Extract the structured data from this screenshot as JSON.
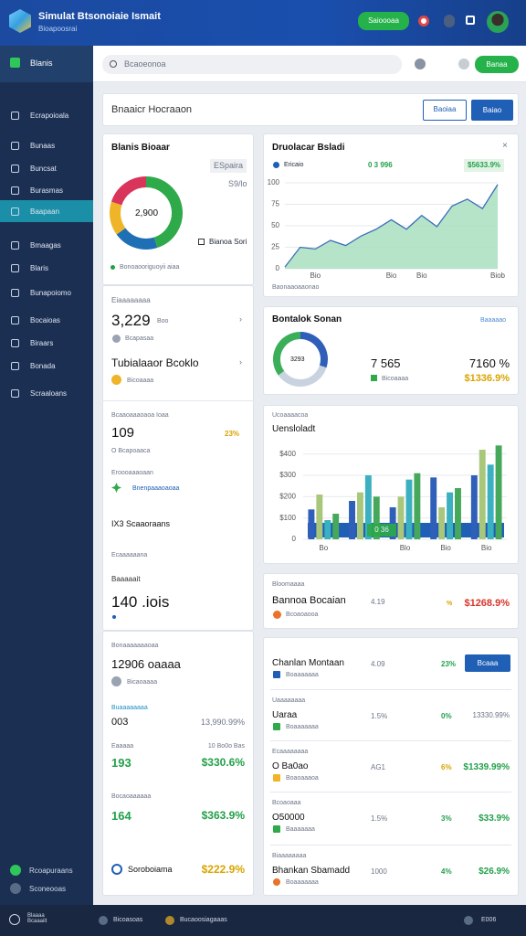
{
  "header": {
    "title": "Simulat Btsonoiaie Ismait",
    "subtitle": "Bioapoosrai",
    "button": "Saioooaa"
  },
  "sidebar": {
    "top": "Blanis",
    "items": [
      "Ecrapoioala",
      "Bunaas",
      "Buncsat",
      "Burasmas",
      "Baapaan",
      "Bmaagas",
      "Blaris",
      "Bunapoiomo",
      "Bocaioas",
      "Biraars",
      "Bonada",
      "Scraaloans"
    ],
    "bottom": [
      "Rcoapuraans",
      "Sconeooas"
    ]
  },
  "toolbar": {
    "search": "Bcaoeonoa",
    "button": "Banaa"
  },
  "page": {
    "title": "Bnaaicr Hocraaon",
    "buttons": [
      "Baoiaa",
      "Baiao"
    ]
  },
  "status_card": {
    "title": "Blanis Bioaar",
    "badge": "ESpaira",
    "note": "S9/lo",
    "center": "2,900",
    "legend_label": "Bianoa Sori",
    "footer": "Bonoaooriguoyii aiaa",
    "donut": {
      "type": "donut",
      "values": [
        45,
        20,
        15,
        20
      ],
      "colors": [
        "#2eaa4a",
        "#1f6fb5",
        "#f0b429",
        "#d9345a"
      ]
    }
  },
  "stats": [
    {
      "label": "Eiaaaaaaaa",
      "value": "3,229",
      "unit": "Boo",
      "sub": "Bcapasaa"
    },
    {
      "value": "Tubialaaor Bcoklo",
      "sub": "Bicoaaaa"
    },
    {
      "label": "Bcaaoaaaoaoa Ioaa",
      "value": "109",
      "pct": "23%",
      "sub": "O Bcapoaaca"
    },
    {
      "label": "Eroooaaaoaan",
      "sub": "Bnenpaaaoaoaa"
    },
    {
      "value": "IX3 Scaaoraans"
    },
    {
      "label": "Ecaaaaaana"
    },
    {
      "label": "Baaaaait",
      "value": "140 .iois"
    }
  ],
  "summary_card": {
    "title": "Bonaaaaaaaoaa",
    "value": "12906 oaaaa",
    "sub": "Bicaoaaaa",
    "rows": [
      {
        "label": "Buaaaaaaaa",
        "value": "003",
        "amount": "13,990.99%"
      },
      {
        "label": "Eaaaaa",
        "value": "193",
        "note": "10 Bo0o Bas",
        "amount": "$330.6%"
      },
      {
        "label": "Bocaoaaaaaa",
        "value": "164",
        "amount": "$363.9%"
      },
      {
        "value": "Soroboiama",
        "amount": "$222.9%"
      }
    ]
  },
  "line_card": {
    "title": "Druolacar Bsladi",
    "legend": "Ericaio",
    "value": "0 3 996",
    "badge": "$5633.9%",
    "footer": "Baonaaoaaonao",
    "chart_data": {
      "type": "area",
      "categories": [
        null,
        null,
        "Bio",
        null,
        null,
        null,
        null,
        "Bio",
        null,
        "Bio",
        null,
        null,
        null,
        null,
        "Biob"
      ],
      "values": [
        2,
        25,
        23,
        33,
        27,
        38,
        46,
        57,
        46,
        62,
        49,
        73,
        81,
        70,
        98
      ],
      "color": "#3c6fb8",
      "fill": "#a8dfc0",
      "ylim": [
        0,
        100
      ],
      "yticks": [
        0,
        25,
        50,
        75,
        100
      ],
      "grid": true
    }
  },
  "donut_card": {
    "title": "Bontalok Sonan",
    "link": "Baaaaao",
    "center": "3293",
    "value1": "7 565",
    "sub1": "Bicoaaaa",
    "value2": "7160 %",
    "amount": "$1336.9%",
    "donut": {
      "type": "donut",
      "values": [
        30,
        35,
        35
      ],
      "colors": [
        "#2f5fb8",
        "#c9d3e0",
        "#3cae5a"
      ]
    }
  },
  "bar_card": {
    "label": "Ucoaaaacoa",
    "title": "Uensloladt",
    "band_label": "0 36",
    "chart_data": {
      "type": "bar",
      "categories": [
        "Bo",
        null,
        "Blo",
        "Bio",
        "Bio"
      ],
      "series": [
        {
          "color": "#2f5fb8",
          "values": [
            140,
            180,
            150,
            290,
            300
          ]
        },
        {
          "color": "#a9c77a",
          "values": [
            210,
            220,
            200,
            150,
            420
          ]
        },
        {
          "color": "#3bb0c0",
          "values": [
            90,
            300,
            280,
            220,
            350
          ]
        },
        {
          "color": "#46a85a",
          "values": [
            120,
            200,
            310,
            240,
            440
          ]
        }
      ],
      "ylim": [
        0,
        450
      ],
      "yticks": [
        0,
        {
          "value": 100,
          "label": "$100"
        },
        {
          "value": 200,
          "label": "$200"
        },
        {
          "value": 300,
          "label": "$300"
        },
        {
          "value": 400,
          "label": "$400"
        }
      ],
      "grid": true
    }
  },
  "info_card": {
    "label": "Bloomaaaa",
    "title": "Bannoa Bocaian",
    "value": "4.19",
    "pct": "%",
    "amount": "$1268.9%",
    "sub": "Bcoaoaooa"
  },
  "table": {
    "rows": [
      {
        "name": "Chanlan Montaan",
        "value": "4.09",
        "pct": "23%",
        "action": "Bcaaa",
        "sub": "Boaaaaaaa"
      },
      {
        "label": "Uaaaaaaaa",
        "name": "Uaraa",
        "value": "1.5%",
        "pct": "0%",
        "amount": "13330.99%",
        "sub": "Boaaaaaaa"
      },
      {
        "label": "Ecaaaaaaaa",
        "name": "O Ba0ao",
        "value": "AG1",
        "pct": "6%",
        "amount": "$1339.99%",
        "sub": "Boaoaaaoa"
      },
      {
        "label": "Bcoaoaaa",
        "name": "O50000",
        "value": "1.5%",
        "pct": "3%",
        "amount": "$33.9%",
        "sub": "Baaaaaaa"
      },
      {
        "label": "Biaaaaaaaa",
        "name": "Bhankan Sbamadd",
        "value": "1000",
        "pct": "4%",
        "amount": "$26.9%",
        "sub": "Boaaaaaaa"
      }
    ]
  },
  "footer": {
    "items": [
      "Blaaaa Bcaaaiit",
      "Bicoasoas",
      "Bucaoosiagaaas",
      "E006"
    ]
  }
}
